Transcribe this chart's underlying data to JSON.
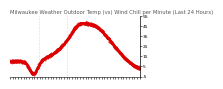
{
  "title": "Milwaukee Weather Outdoor Temp (vs) Wind Chill per Minute (Last 24 Hours)",
  "line_color": "#dd0000",
  "background_color": "#ffffff",
  "vline_color": "#bbbbbb",
  "ylabel_color": "#000000",
  "ylim": [
    -5,
    55
  ],
  "yticks": [
    -5,
    5,
    15,
    25,
    35,
    45,
    55
  ],
  "ytick_labels": [
    "-5",
    "5",
    "15",
    "25",
    "35",
    "45",
    "55"
  ],
  "num_points": 1440,
  "vline_positions": [
    0.22,
    0.44
  ],
  "title_fontsize": 3.8,
  "tick_fontsize": 3.2,
  "linewidth": 0.5,
  "markersize": 0.6
}
